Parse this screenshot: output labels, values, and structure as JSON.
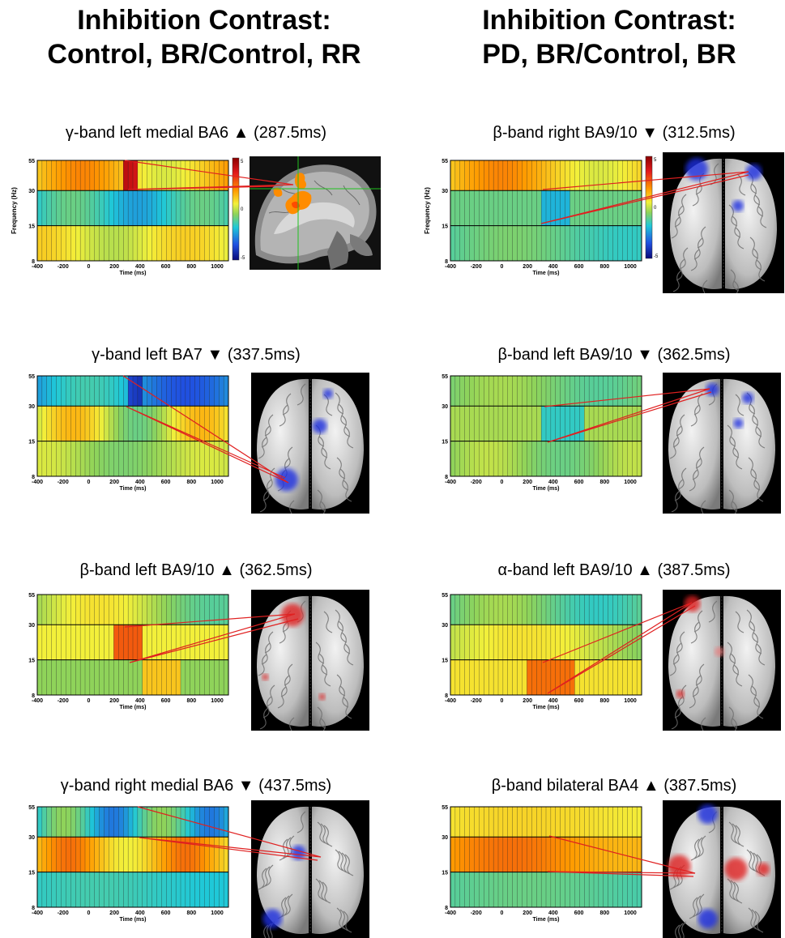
{
  "columns": [
    {
      "title_line1": "Inhibition Contrast:",
      "title_line2": "Control, BR/Control, RR"
    },
    {
      "title_line1": "Inhibition Contrast:",
      "title_line2": "PD, BR/Control, BR"
    }
  ],
  "axis": {
    "ylabel": "Frequency (Hz)",
    "xlabel": "Time (ms)",
    "yticks": [
      "55",
      "30",
      "15",
      "8"
    ],
    "xticks": [
      "-400",
      "-200",
      "0",
      "200",
      "400",
      "600",
      "800",
      "1000"
    ]
  },
  "colorbar": {
    "max": "5",
    "mid": "0",
    "min": "-5"
  },
  "panels": [
    {
      "title": "γ-band left medial BA6 ▲ (287.5ms)",
      "band": "γ",
      "region": "left medial BA6",
      "direction": "increase",
      "latency_ms": 287.5,
      "brain_view": "sagittal MRI"
    },
    {
      "title": "β-band right BA9/10 ▼ (312.5ms)",
      "band": "β",
      "region": "right BA9/10",
      "direction": "decrease",
      "latency_ms": 312.5,
      "brain_view": "superior surface"
    },
    {
      "title": "γ-band left BA7 ▼ (337.5ms)",
      "band": "γ",
      "region": "left BA7",
      "direction": "decrease",
      "latency_ms": 337.5,
      "brain_view": "superior surface"
    },
    {
      "title": "β-band left BA9/10 ▼ (362.5ms)",
      "band": "β",
      "region": "left BA9/10",
      "direction": "decrease",
      "latency_ms": 362.5,
      "brain_view": "superior surface"
    },
    {
      "title": "β-band left BA9/10 ▲ (362.5ms)",
      "band": "β",
      "region": "left BA9/10",
      "direction": "increase",
      "latency_ms": 362.5,
      "brain_view": "superior surface"
    },
    {
      "title": "α-band left BA9/10 ▲ (387.5ms)",
      "band": "α",
      "region": "left BA9/10",
      "direction": "increase",
      "latency_ms": 387.5,
      "brain_view": "superior surface"
    },
    {
      "title": "γ-band right medial BA6 ▼ (437.5ms)",
      "band": "γ",
      "region": "right medial BA6",
      "direction": "decrease",
      "latency_ms": 437.5,
      "brain_view": "superior surface"
    },
    {
      "title": "β-band bilateral BA4 ▲ (387.5ms)",
      "band": "β",
      "region": "bilateral BA4",
      "direction": "increase",
      "latency_ms": 387.5,
      "brain_view": "superior surface"
    }
  ],
  "colors": {
    "increase": "#e02020",
    "decrease": "#1e2ee0",
    "connector": "#e02020"
  }
}
